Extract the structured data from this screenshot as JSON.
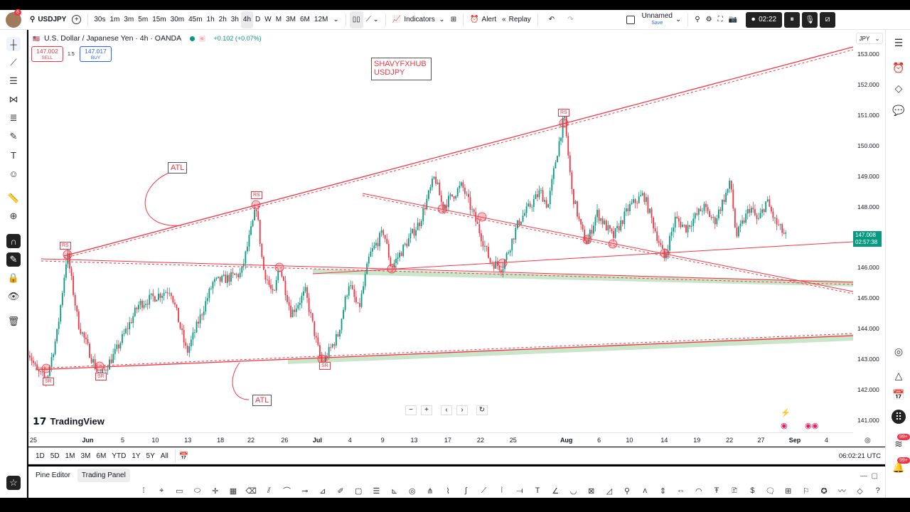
{
  "topbar": {
    "notification_count": "6",
    "symbol": "USDJPY",
    "intervals": [
      "30s",
      "1m",
      "3m",
      "5m",
      "15m",
      "30m",
      "45m",
      "1h",
      "2h",
      "3h",
      "4h",
      "D",
      "W",
      "M",
      "3M",
      "6M",
      "12M"
    ],
    "active_interval": "4h",
    "indicators_label": "Indicators",
    "alert_label": "Alert",
    "replay_label": "Replay",
    "layout_name": "Unnamed",
    "save_label": "Save",
    "recording_time": "02:22"
  },
  "legend": {
    "title": "U.S. Dollar / Japanese Yen · 4h · OANDA",
    "change": "+0.102 (+0.07%)",
    "sell_price": "147.002",
    "sell_label": "SELL",
    "spread": "1.5",
    "buy_price": "147.017",
    "buy_label": "BUY"
  },
  "annotations": {
    "title_box_line1": "SHAVYFXHUB",
    "title_box_line2": "USDJPY",
    "atl": "ATL",
    "rs": "RS",
    "sr": "SR"
  },
  "logo": "TradingView",
  "price_axis": {
    "currency": "JPY",
    "ticks": [
      "153.000",
      "152.000",
      "151.000",
      "150.000",
      "149.000",
      "148.000",
      "146.000",
      "145.000",
      "144.000",
      "143.000",
      "142.000",
      "141.000"
    ],
    "current_price": "147.008",
    "countdown": "02:57:38"
  },
  "time_axis": {
    "labels": [
      {
        "t": "25",
        "d": 0
      },
      {
        "t": "Jun",
        "d": 5,
        "bold": true
      },
      {
        "t": "5",
        "d": 8.2
      },
      {
        "t": "10",
        "d": 11.2
      },
      {
        "t": "13",
        "d": 14.2
      },
      {
        "t": "18",
        "d": 17.2
      },
      {
        "t": "22",
        "d": 20
      },
      {
        "t": "26",
        "d": 23.1
      },
      {
        "t": "Jul",
        "d": 26.1,
        "bold": true
      },
      {
        "t": "4",
        "d": 29.1
      },
      {
        "t": "9",
        "d": 32.1
      },
      {
        "t": "13",
        "d": 35
      },
      {
        "t": "17",
        "d": 38.1
      },
      {
        "t": "22",
        "d": 41.1
      },
      {
        "t": "25",
        "d": 44.1
      },
      {
        "t": "Aug",
        "d": 49,
        "bold": true
      },
      {
        "t": "6",
        "d": 52
      },
      {
        "t": "10",
        "d": 54.8
      },
      {
        "t": "14",
        "d": 58
      },
      {
        "t": "19",
        "d": 61
      },
      {
        "t": "22",
        "d": 64
      },
      {
        "t": "27",
        "d": 66.9
      },
      {
        "t": "Sep",
        "d": 70,
        "bold": true
      },
      {
        "t": "4",
        "d": 72.9
      }
    ]
  },
  "range_bar": {
    "ranges": [
      "1D",
      "5D",
      "1M",
      "3M",
      "6M",
      "YTD",
      "1Y",
      "5Y",
      "All"
    ],
    "clock": "06:02:21 UTC"
  },
  "bottom_panel": {
    "tabs": [
      "Pine Editor",
      "Trading Panel"
    ]
  },
  "rightbar": {
    "badge1": "99+",
    "badge2": "99+"
  },
  "colors": {
    "up": "#089981",
    "down": "#f23645",
    "accent": "#2962ff",
    "drawing": "#f23645",
    "zone": "#a5d6a7"
  },
  "chart_data": {
    "type": "candlestick",
    "symbol": "USDJPY",
    "timeframe": "4h",
    "x_unit": "trading days from May 25",
    "ylim": [
      140.6,
      153.8
    ],
    "anchors": [
      [
        -0.5,
        143.3
      ],
      [
        0.3,
        142.6
      ],
      [
        1.2,
        142.3
      ],
      [
        2.2,
        143.9
      ],
      [
        3.1,
        146.5
      ],
      [
        4.1,
        144.2
      ],
      [
        5.4,
        143.0
      ],
      [
        6.1,
        142.4
      ],
      [
        7.5,
        143.2
      ],
      [
        9.7,
        144.8
      ],
      [
        12.6,
        145.3
      ],
      [
        14.1,
        143.2
      ],
      [
        16.5,
        145.5
      ],
      [
        19.1,
        145.8
      ],
      [
        20.5,
        148.0
      ],
      [
        21.1,
        146.0
      ],
      [
        22.1,
        145.0
      ],
      [
        22.6,
        146.1
      ],
      [
        23.7,
        144.5
      ],
      [
        25.0,
        145.2
      ],
      [
        26.5,
        142.8
      ],
      [
        28.0,
        143.8
      ],
      [
        29.0,
        145.5
      ],
      [
        29.9,
        144.6
      ],
      [
        30.9,
        146.4
      ],
      [
        32.2,
        147.2
      ],
      [
        32.9,
        146.0
      ],
      [
        35.5,
        147.5
      ],
      [
        36.9,
        149.0
      ],
      [
        37.6,
        148.0
      ],
      [
        39.4,
        148.7
      ],
      [
        40.7,
        147.5
      ],
      [
        42.0,
        146.2
      ],
      [
        43.1,
        146.0
      ],
      [
        44.6,
        147.5
      ],
      [
        46.6,
        148.5
      ],
      [
        47.3,
        148.0
      ],
      [
        48.0,
        149.5
      ],
      [
        48.8,
        151.0
      ],
      [
        49.5,
        148.5
      ],
      [
        50.4,
        147.2
      ],
      [
        50.9,
        146.8
      ],
      [
        51.8,
        147.8
      ],
      [
        53.3,
        147.0
      ],
      [
        54.8,
        148.0
      ],
      [
        56.1,
        148.4
      ],
      [
        57.1,
        147.3
      ],
      [
        58.0,
        146.3
      ],
      [
        59.0,
        147.6
      ],
      [
        60.0,
        147.3
      ],
      [
        61.6,
        148.0
      ],
      [
        62.6,
        147.5
      ],
      [
        64.1,
        148.8
      ],
      [
        64.6,
        147.0
      ],
      [
        65.9,
        148.0
      ],
      [
        66.6,
        147.5
      ],
      [
        67.4,
        148.2
      ],
      [
        68.2,
        147.5
      ],
      [
        69.2,
        147.0
      ]
    ]
  }
}
